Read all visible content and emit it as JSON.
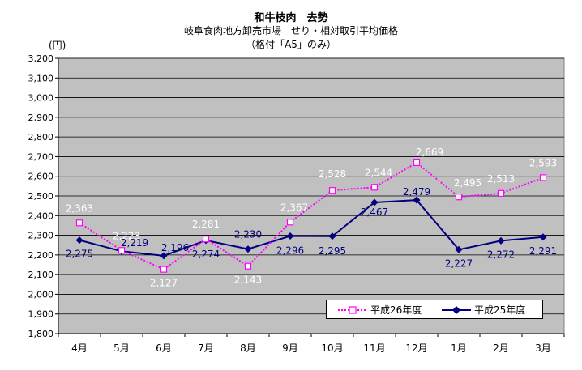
{
  "titles": {
    "line1": "和牛枝肉　去勢",
    "line2": "岐阜食肉地方卸売市場　せり・相対取引平均価格",
    "line3": "（格付「A5」のみ）"
  },
  "chart_data": {
    "type": "line",
    "categories": [
      "4月",
      "5月",
      "6月",
      "7月",
      "8月",
      "9月",
      "10月",
      "11月",
      "12月",
      "1月",
      "2月",
      "3月"
    ],
    "ylim": [
      1800,
      3200
    ],
    "ytick_step": 100,
    "ylabel": "(円)",
    "grid": true,
    "plot_background": "#c0c0c0",
    "legend_position": "bottom-right",
    "series": [
      {
        "name": "平成26年度",
        "values": [
          2363,
          2223,
          2127,
          2281,
          2143,
          2367,
          2528,
          2544,
          2669,
          2495,
          2513,
          2593
        ],
        "labels": [
          "2,363",
          "2,223",
          "2,127",
          "2,281",
          "2,143",
          "2,367",
          "2,528",
          "2,544",
          "2,669",
          "2,495",
          "2,513",
          "2,593"
        ],
        "color": "#ff00ff",
        "marker": "square",
        "line_style": "dotted",
        "label_color": "#ffffff"
      },
      {
        "name": "平成25年度",
        "values": [
          2275,
          2219,
          2196,
          2274,
          2230,
          2296,
          2295,
          2467,
          2479,
          2227,
          2272,
          2291
        ],
        "labels": [
          "2,275",
          "2,219",
          "2,196",
          "2,274",
          "2,230",
          "2,296",
          "2,295",
          "2,467",
          "2,479",
          "2,227",
          "2,272",
          "2,291"
        ],
        "color": "#000080",
        "marker": "diamond",
        "line_style": "solid",
        "label_color": "#000080"
      }
    ]
  }
}
